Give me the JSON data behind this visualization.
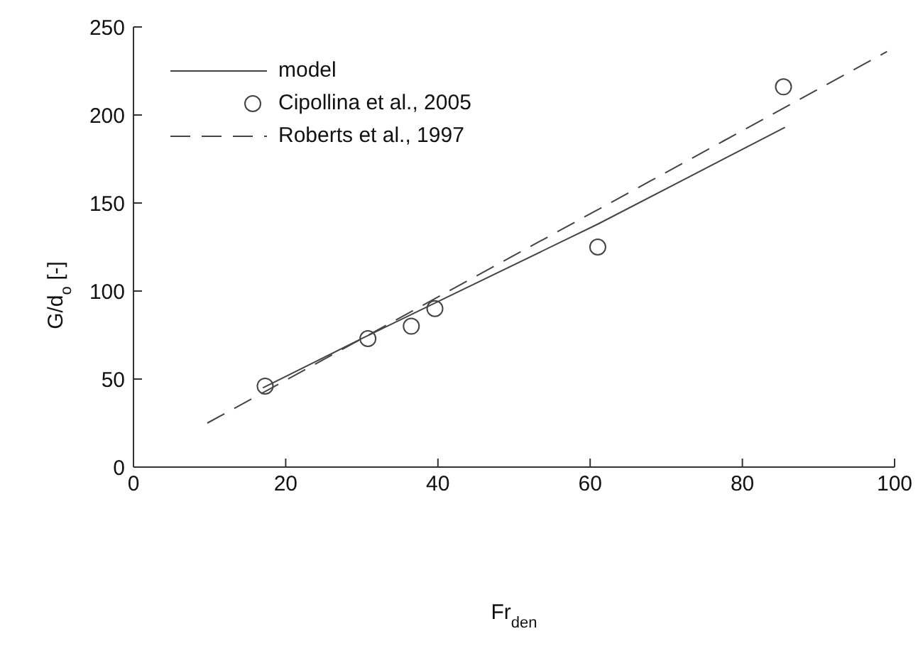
{
  "chart_data": {
    "type": "line",
    "xlabel": "Fr$_{den}$",
    "ylabel": "G/d$_{o}$ [-]",
    "xlim": [
      0,
      100
    ],
    "xticks": [
      0,
      20,
      40,
      60,
      80,
      100
    ],
    "ylim": [
      0,
      250
    ],
    "yticks": [
      0,
      50,
      100,
      150,
      200,
      250
    ],
    "grid": false,
    "legend": "top left",
    "series": [
      {
        "name": "model",
        "color": "#444444",
        "line_style": "solid",
        "marker": "none",
        "x": [
          17,
          30,
          40,
          61,
          85.6
        ],
        "values": [
          45,
          73,
          94,
          138,
          193
        ]
      },
      {
        "name": "Cipollina et al., 2005",
        "type": "scatter",
        "color": "#444444",
        "marker": "circle",
        "x": [
          17.3,
          30.8,
          36.5,
          39.6,
          61,
          85.4
        ],
        "values": [
          46,
          73,
          80,
          90,
          125,
          216
        ]
      },
      {
        "name": "Roberts et al., 1997",
        "color": "#444444",
        "line_style": "dashed",
        "marker": "none",
        "x": [
          9.7,
          99
        ],
        "values": [
          25,
          236
        ]
      }
    ]
  }
}
